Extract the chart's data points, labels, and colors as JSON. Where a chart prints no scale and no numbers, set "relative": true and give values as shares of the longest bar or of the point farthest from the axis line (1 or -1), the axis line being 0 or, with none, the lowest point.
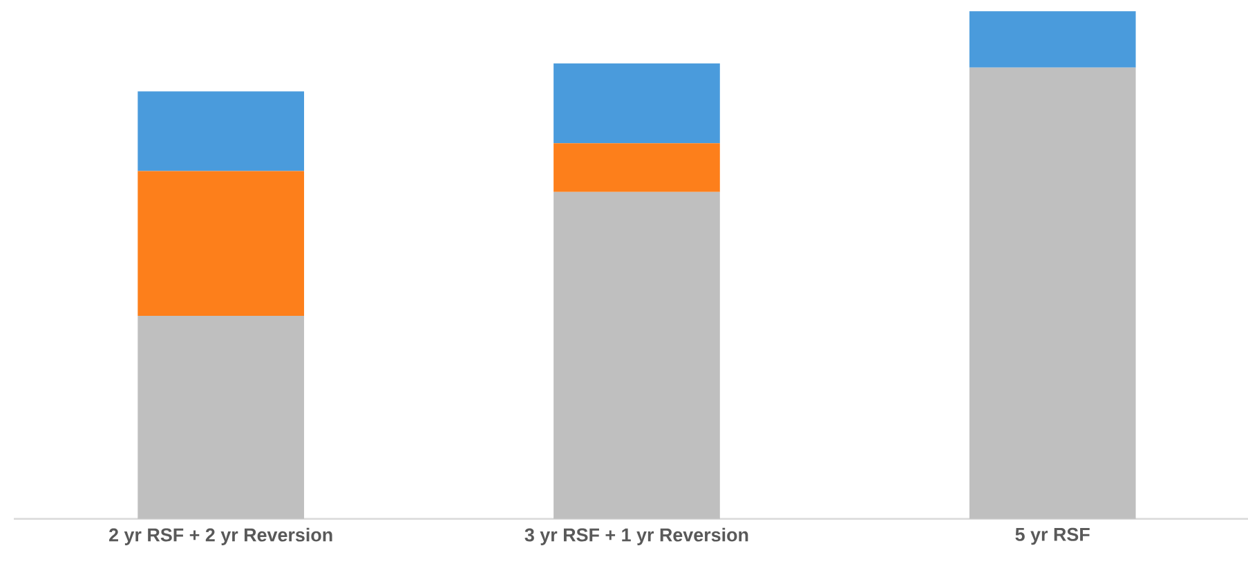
{
  "chart_data": {
    "type": "bar",
    "stacked": true,
    "relative": true,
    "categories": [
      "2 yr RSF + 2 yr Reversion",
      "3 yr RSF + 1 yr Reversion",
      "5 yr RSF"
    ],
    "series": [
      {
        "color": "#bfbfbf",
        "values": [
          0.4,
          0.644,
          0.889
        ]
      },
      {
        "color": "#fd7f1b",
        "values": [
          0.285,
          0.096,
          0
        ]
      },
      {
        "color": "#4a9bdc",
        "values": [
          0.157,
          0.157,
          0.111
        ]
      }
    ]
  }
}
